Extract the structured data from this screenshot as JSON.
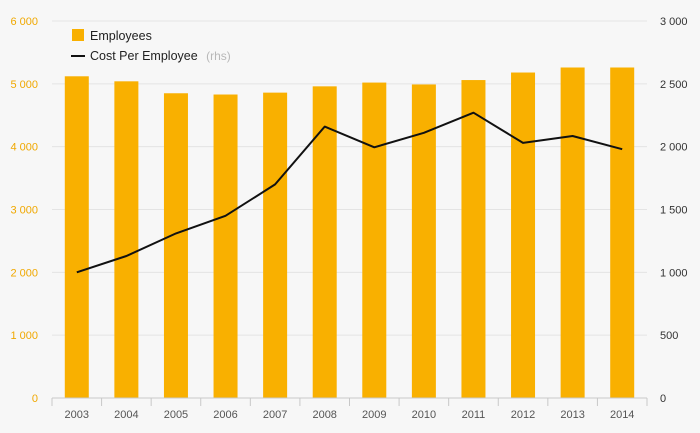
{
  "chart_data": {
    "type": "bar",
    "categories": [
      "2003",
      "2004",
      "2005",
      "2006",
      "2007",
      "2008",
      "2009",
      "2010",
      "2011",
      "2012",
      "2013",
      "2014"
    ],
    "series": [
      {
        "name": "Employees",
        "type": "bar",
        "axis": "left",
        "color": "#f9b000",
        "values": [
          5120,
          5040,
          4850,
          4830,
          4860,
          4960,
          5020,
          4990,
          5060,
          5180,
          5260,
          5260
        ]
      },
      {
        "name": "Cost Per Employee",
        "type": "line",
        "axis": "right",
        "color": "#111111",
        "values": [
          1000,
          1130,
          1310,
          1450,
          1700,
          2160,
          1995,
          2110,
          2270,
          2030,
          2085,
          1980
        ]
      }
    ],
    "legend": {
      "position": "top-left",
      "entries": [
        {
          "label": "Employees",
          "suffix": ""
        },
        {
          "label": "Cost Per Employee",
          "suffix": "(rhs)"
        }
      ]
    },
    "yaxis_left": {
      "range": [
        0,
        6000
      ],
      "ticks": [
        0,
        1000,
        2000,
        3000,
        4000,
        5000,
        6000
      ],
      "tick_labels": [
        "0",
        "1 000",
        "2 000",
        "3 000",
        "4 000",
        "5 000",
        "6 000"
      ],
      "color": "#f0a800"
    },
    "yaxis_right": {
      "range": [
        0,
        3000
      ],
      "ticks": [
        0,
        500,
        1000,
        1500,
        2000,
        2500,
        3000
      ],
      "tick_labels": [
        "0",
        "500",
        "1 000",
        "1 500",
        "2 000",
        "2 500",
        "3 000"
      ],
      "color": "#333333"
    },
    "grid": true
  }
}
